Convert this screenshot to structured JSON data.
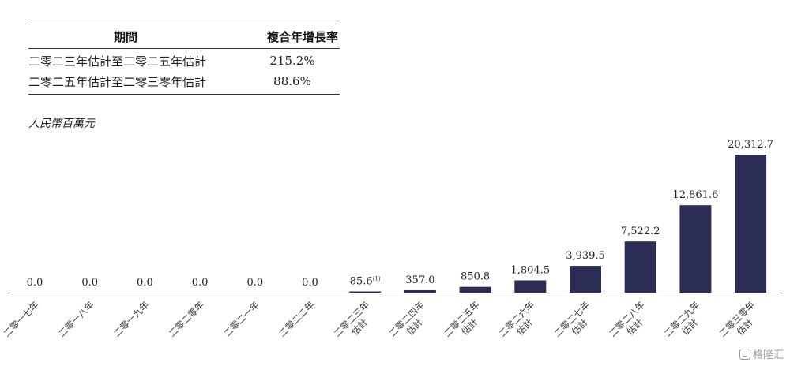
{
  "cagr_table": {
    "header": {
      "period": "期間",
      "cagr": "複合年增長率"
    },
    "rows": [
      {
        "period": "二零二三年估計至二零二五年估計",
        "cagr": "215.2%"
      },
      {
        "period": "二零二五年估計至二零三零年估計",
        "cagr": "88.6%"
      }
    ]
  },
  "chart_data": {
    "type": "bar",
    "unit_label": "人民幣百萬元",
    "categories": [
      [
        "二零一七年"
      ],
      [
        "二零一八年"
      ],
      [
        "二零一九年"
      ],
      [
        "二零二零年"
      ],
      [
        "二零二一年"
      ],
      [
        "二零二二年"
      ],
      [
        "二零二三年",
        "估計"
      ],
      [
        "二零二四年",
        "估計"
      ],
      [
        "二零二五年",
        "估計"
      ],
      [
        "二零二六年",
        "估計"
      ],
      [
        "二零二七年",
        "估計"
      ],
      [
        "二零二八年",
        "估計"
      ],
      [
        "二零二九年",
        "估計"
      ],
      [
        "二零三零年",
        "估計"
      ]
    ],
    "values": [
      0.0,
      0.0,
      0.0,
      0.0,
      0.0,
      0.0,
      85.6,
      357.0,
      850.8,
      1804.5,
      3939.5,
      7522.2,
      12861.6,
      20312.7
    ],
    "value_labels": [
      "0.0",
      "0.0",
      "0.0",
      "0.0",
      "0.0",
      "0.0",
      "85.6",
      "357.0",
      "850.8",
      "1,804.5",
      "3,939.5",
      "7,522.2",
      "12,861.6",
      "20,312.7"
    ],
    "notes": [
      "",
      "",
      "",
      "",
      "",
      "",
      "(1)",
      "",
      "",
      "",
      "",
      "",
      "",
      ""
    ],
    "ylim": [
      0,
      20312.7
    ],
    "bar_color": "#2b2d54",
    "grid": false,
    "legend": "none"
  },
  "watermark": {
    "text": "格隆汇"
  }
}
